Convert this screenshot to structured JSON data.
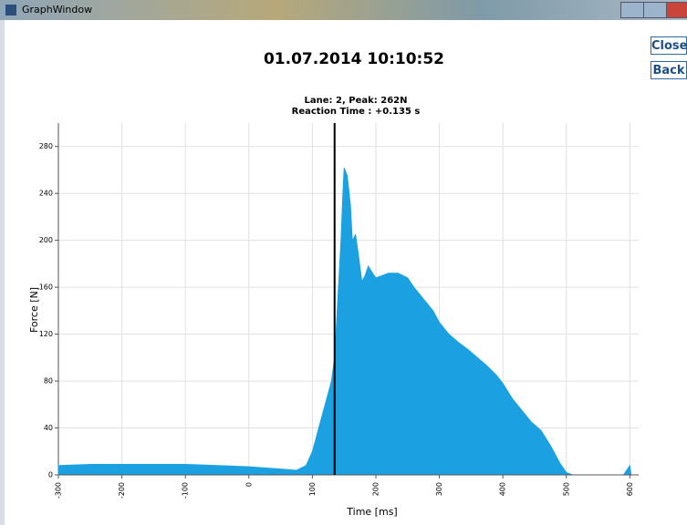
{
  "window": {
    "title": "GraphWindow",
    "buttons": [
      "Close",
      "Back"
    ]
  },
  "chart_data": {
    "type": "area",
    "title": "01.07.2014 10:10:52",
    "subtitle": [
      "Lane: 2, Peak: 262N",
      "Reaction Time : +0.135 s"
    ],
    "xlabel": "Time [ms]",
    "ylabel": "Force [N]",
    "color": "#1ba1e2",
    "marker_color": "#000000",
    "grid": true,
    "marker_x": 135,
    "x": [
      -300,
      -250,
      -200,
      -150,
      -100,
      -50,
      0,
      50,
      75,
      90,
      100,
      110,
      120,
      130,
      135,
      140,
      145,
      148,
      150,
      155,
      160,
      163,
      168,
      172,
      178,
      183,
      188,
      195,
      200,
      210,
      220,
      235,
      250,
      260,
      275,
      290,
      300,
      315,
      330,
      345,
      360,
      375,
      390,
      400,
      415,
      430,
      445,
      460,
      475,
      490,
      500,
      510,
      590,
      600,
      602,
      690
    ],
    "values": [
      8,
      9,
      9,
      9,
      9,
      8,
      7,
      5,
      4,
      8,
      20,
      40,
      60,
      80,
      100,
      150,
      200,
      240,
      262,
      255,
      230,
      200,
      205,
      190,
      165,
      170,
      178,
      172,
      168,
      170,
      172,
      172,
      168,
      160,
      150,
      140,
      130,
      120,
      113,
      107,
      100,
      93,
      85,
      78,
      65,
      55,
      45,
      38,
      25,
      10,
      2,
      0,
      0,
      8,
      0,
      0
    ],
    "xlim": [
      -300,
      690
    ],
    "ylim": [
      0,
      300
    ],
    "xticks": [
      -300,
      -200,
      -100,
      0,
      100,
      200,
      300,
      400,
      500,
      600
    ],
    "yticks": [
      0,
      40,
      80,
      120,
      160,
      200,
      240,
      280
    ]
  }
}
